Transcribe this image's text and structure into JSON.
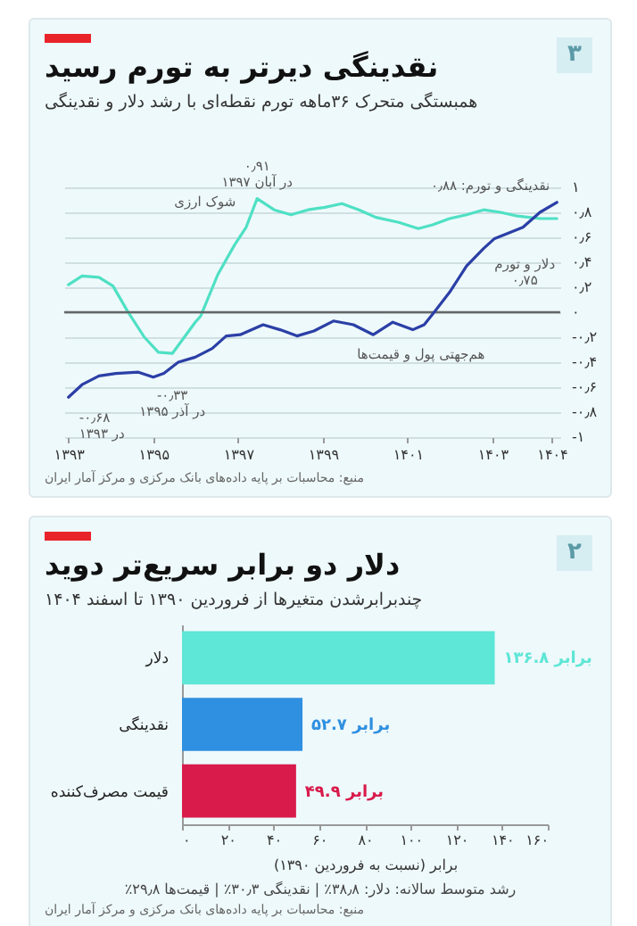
{
  "chart_data": [
    {
      "type": "line",
      "title": "نقدینگی دیرتر به تورم رسید",
      "subtitle": "همبستگی متحرک ۳۶ماهه تورم نقطه‌ای با رشد دلار و نقدینگی",
      "series": [
        {
          "color": "#4fe0c4",
          "x": [
            1393.0,
            1393.32,
            1393.72,
            1394.05,
            1394.39,
            1394.79,
            1395.12,
            1395.45,
            1395.99,
            1396.12,
            1396.52,
            1396.92,
            1397.19,
            1397.45,
            1397.85,
            1398.25,
            1398.65,
            1399.05,
            1399.45,
            1399.85,
            1400.25,
            1400.79,
            1401.25,
            1401.59,
            1401.99,
            1402.39,
            1402.79,
            1403.19,
            1403.59,
            1404.12,
            1404.52
          ],
          "values": [
            0.22,
            0.29,
            0.28,
            0.21,
            0.01,
            -0.2,
            -0.32,
            -0.33,
            -0.08,
            -0.03,
            0.3,
            0.54,
            0.68,
            0.91,
            0.82,
            0.78,
            0.82,
            0.84,
            0.87,
            0.82,
            0.76,
            0.72,
            0.67,
            0.7,
            0.75,
            0.78,
            0.82,
            0.8,
            0.77,
            0.75,
            0.75
          ]
        },
        {
          "color": "#2b3fa6",
          "x": [
            1393.0,
            1393.32,
            1393.72,
            1394.12,
            1394.65,
            1395.0,
            1395.25,
            1395.59,
            1395.99,
            1396.39,
            1396.72,
            1397.05,
            1397.59,
            1397.99,
            1398.39,
            1398.79,
            1399.25,
            1399.72,
            1400.19,
            1400.65,
            1401.12,
            1401.39,
            1401.65,
            1401.99,
            1402.39,
            1402.79,
            1403.05,
            1403.72,
            1404.12,
            1404.52
          ],
          "values": [
            -0.68,
            -0.58,
            -0.51,
            -0.49,
            -0.48,
            -0.52,
            -0.49,
            -0.4,
            -0.36,
            -0.29,
            -0.19,
            -0.18,
            -0.1,
            -0.14,
            -0.19,
            -0.15,
            -0.07,
            -0.1,
            -0.18,
            -0.08,
            -0.14,
            -0.1,
            0.01,
            0.16,
            0.37,
            0.51,
            0.59,
            0.68,
            0.8,
            0.88
          ]
        }
      ],
      "xlim": [
        1392.9,
        1404.6
      ],
      "xticks": [
        {
          "value": 1393,
          "label": "۱۳۹۳"
        },
        {
          "value": 1395,
          "label": "۱۳۹۵"
        },
        {
          "value": 1397,
          "label": "۱۳۹۷"
        },
        {
          "value": 1399,
          "label": "۱۳۹۹"
        },
        {
          "value": 1401,
          "label": "۱۴۰۱"
        },
        {
          "value": 1403,
          "label": "۱۴۰۳"
        },
        {
          "value": 1404.4,
          "label": "۱۴۰۴"
        }
      ],
      "ylim": [
        -1,
        1
      ],
      "yticks": [
        {
          "value": -1,
          "label": "-۱"
        },
        {
          "value": -0.8,
          "label": "-۰٫۸"
        },
        {
          "value": -0.6,
          "label": "-۰٫۶"
        },
        {
          "value": -0.4,
          "label": "-۰٫۴"
        },
        {
          "value": -0.2,
          "label": "-۰٫۲"
        },
        {
          "value": 0,
          "label": "۰"
        },
        {
          "value": 0.2,
          "label": "۰٫۲"
        },
        {
          "value": 0.4,
          "label": "۰٫۴"
        },
        {
          "value": 0.6,
          "label": "۰٫۶"
        },
        {
          "value": 0.8,
          "label": "۰٫۸"
        },
        {
          "value": 1,
          "label": "۱"
        }
      ],
      "grid": "y",
      "ref_lines": [
        {
          "axis": "y",
          "value": 0,
          "color": "#666666"
        }
      ],
      "annotations": [
        {
          "text": "۰٫۹۱\nدر آبان ۱۳۹۷",
          "x": 1397.45,
          "y": 0.91
        },
        {
          "text": "شوک ارزی",
          "x": 1397.45,
          "y": 0.91
        },
        {
          "text": "-۰٫۳۳\nدر آذر ۱۳۹۵",
          "x": 1395.45,
          "y": -0.33
        },
        {
          "text": "-۰٫۶۸\nدر ۱۳۹۳",
          "x": 1393.0,
          "y": -0.68
        },
        {
          "text": "هم‌جهتی پول و قیمت‌ها",
          "x": 1401.65,
          "y": 0
        },
        {
          "text": "نقدینگی و تورم: ۰٫۸۸",
          "x": 1404.52,
          "y": 0.88
        },
        {
          "text": "دلار و تورم\n۰٫۷۵",
          "x": 1404.52,
          "y": 0.75
        },
        "۳",
        "منبع: محاسبات بر پایه داده‌های بانک مرکزی و مرکز آمار ایران"
      ]
    },
    {
      "type": "bar",
      "orientation": "horizontal",
      "title": "دلار دو برابر سریع‌تر دوید",
      "subtitle": "چندبرابرشدن متغیرها از فروردین ۱۳۹۰ تا اسفند ۱۴۰۴",
      "categories": [
        "دلار",
        "نقدینگی",
        "قیمت مصرف‌کننده"
      ],
      "values": [
        136.8,
        52.7,
        49.9
      ],
      "colors": [
        "#5ee6d6",
        "#2f8fe0",
        "#d81b4b"
      ],
      "value_labels": [
        "۱۳۶.۸ برابر",
        "۵۲.۷ برابر",
        "۴۹.۹ برابر"
      ],
      "xlabel": "برابر (نسبت به فروردین ۱۳۹۰)",
      "xlim": [
        0,
        160
      ],
      "xticks": [
        {
          "value": 0,
          "label": "۰"
        },
        {
          "value": 20,
          "label": "۲۰"
        },
        {
          "value": 40,
          "label": "۴۰"
        },
        {
          "value": 60,
          "label": "۶۰"
        },
        {
          "value": 80,
          "label": "۸۰"
        },
        {
          "value": 100,
          "label": "۱۰۰"
        },
        {
          "value": 120,
          "label": "۱۲۰"
        },
        {
          "value": 140,
          "label": "۱۴۰"
        },
        {
          "value": 160,
          "label": "۱۶۰"
        }
      ],
      "annotations": [
        "۲",
        "رشد متوسط سالانه: دلار: ۳۸٫۸٪ | نقدینگی ۳۰٫۳٪ | قیمت‌ها ۲۹٫۸٪",
        "منبع: محاسبات بر پایه داده‌های بانک مرکزی و مرکز آمار ایران"
      ]
    }
  ]
}
